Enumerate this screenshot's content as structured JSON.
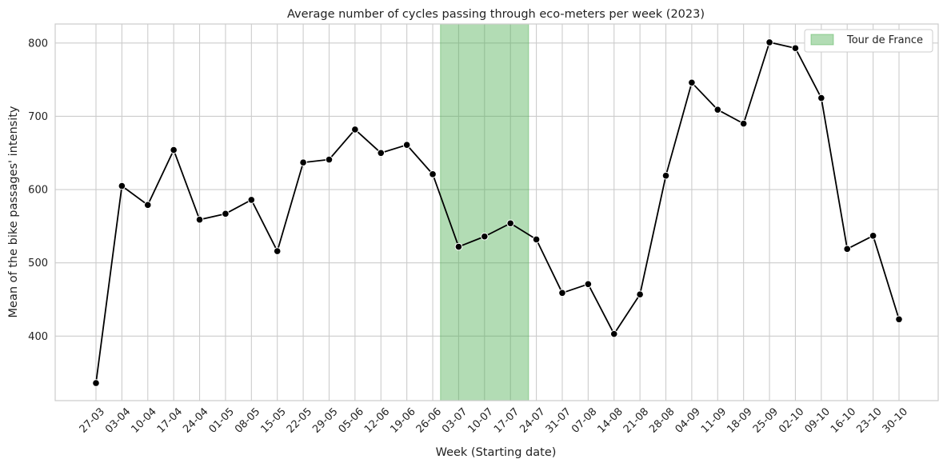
{
  "chart_data": {
    "type": "line",
    "title": "Average number of cycles passing through eco-meters per week (2023)",
    "xlabel": "Week (Starting date)",
    "ylabel": "Mean of the bike passages' intensity",
    "categories": [
      "27-03",
      "03-04",
      "10-04",
      "17-04",
      "24-04",
      "01-05",
      "08-05",
      "15-05",
      "22-05",
      "29-05",
      "05-06",
      "12-06",
      "19-06",
      "26-06",
      "03-07",
      "10-07",
      "17-07",
      "24-07",
      "31-07",
      "07-08",
      "14-08",
      "21-08",
      "28-08",
      "04-09",
      "11-09",
      "18-09",
      "25-09",
      "02-10",
      "09-10",
      "16-10",
      "23-10",
      "30-10"
    ],
    "values": [
      336,
      605,
      579,
      654,
      559,
      567,
      586,
      516,
      637,
      641,
      682,
      650,
      661,
      621,
      522,
      536,
      554,
      532,
      459,
      471,
      403,
      457,
      619,
      746,
      709,
      690,
      801,
      793,
      725,
      519,
      537,
      423
    ],
    "ylim": [
      312,
      826
    ],
    "yticks": [
      400,
      500,
      600,
      700,
      800
    ],
    "grid": true,
    "line_color": "#000000",
    "highlight": {
      "label": "Tour de France",
      "start": "03-07",
      "end": "24-07",
      "color": "#4caf50"
    },
    "legend": {
      "placement": "top-right",
      "entries": [
        "Tour de France"
      ]
    }
  }
}
